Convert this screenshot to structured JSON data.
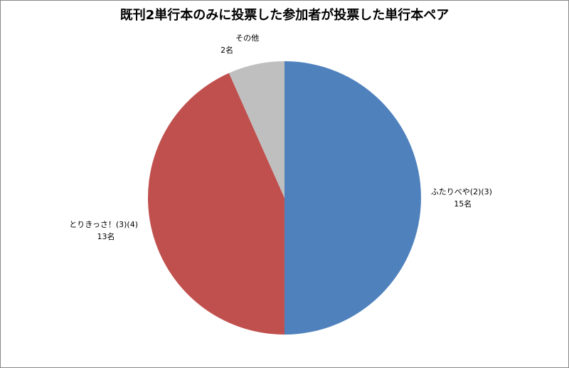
{
  "chart_data": {
    "type": "pie",
    "title": "既刊2単行本のみに投票した参加者が投票した単行本ペア",
    "categories": [
      "ふたりべや(2)(3)",
      "とりきっさ！(3)(4)",
      "その他"
    ],
    "values": [
      15,
      13,
      2
    ],
    "value_labels": [
      "15名",
      "13名",
      "2名"
    ],
    "colors": [
      "#4f81bd",
      "#c0504d",
      "#bfbfbf"
    ]
  }
}
